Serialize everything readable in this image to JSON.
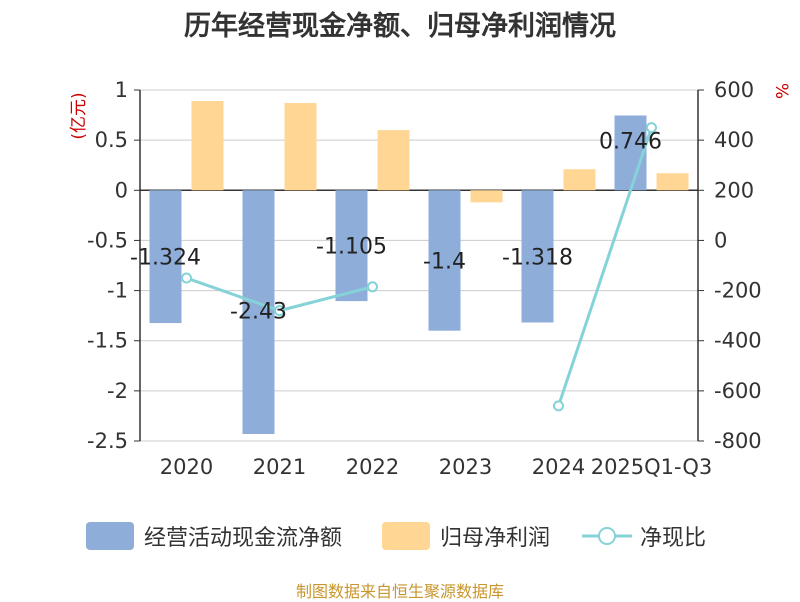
{
  "title": "历年经营现金净额、归母净利润情况",
  "source": "制图数据来自恒生聚源数据库",
  "left_axis_unit": "(亿元)",
  "right_axis_unit": "%",
  "legend": {
    "cash": "经营活动现金流净额",
    "profit": "归母净利润",
    "ratio": "净现比"
  },
  "colors": {
    "cash": "#8EADD9",
    "profit": "#FFD694",
    "ratio": "#85D2D8",
    "unit": "#CC0000",
    "axis": "#333333",
    "grid": "#CCCCCC"
  },
  "chart_data": {
    "type": "bar",
    "title": "历年经营现金净额、归母净利润情况",
    "categories": [
      "2020",
      "2021",
      "2022",
      "2023",
      "2024",
      "2025Q1-Q3"
    ],
    "series": [
      {
        "name": "经营活动现金流净额",
        "type": "bar",
        "axis": "left",
        "values": [
          -1.324,
          -2.43,
          -1.105,
          -1.4,
          -1.318,
          0.746
        ],
        "labels": [
          "-1.324",
          "-2.43",
          "-1.105",
          "-1.4",
          "-1.318",
          "0.746"
        ]
      },
      {
        "name": "归母净利润",
        "type": "bar",
        "axis": "left",
        "values": [
          0.89,
          0.87,
          0.6,
          -0.12,
          0.21,
          0.17
        ]
      },
      {
        "name": "净现比",
        "type": "line",
        "axis": "right",
        "values": [
          -150,
          -280,
          -185,
          null,
          -660,
          450
        ]
      }
    ],
    "ylim_left": [
      -2.5,
      1
    ],
    "yticks_left": [
      "1",
      "0.5",
      "0",
      "-0.5",
      "-1",
      "-1.5",
      "-2",
      "-2.5"
    ],
    "ylim_right": [
      -800,
      600
    ],
    "yticks_right": [
      "600",
      "400",
      "200",
      "0",
      "-200",
      "-400",
      "-600",
      "-800"
    ],
    "ylabel_left": "(亿元)",
    "ylabel_right": "%",
    "grid": true,
    "legend_position": "bottom"
  }
}
